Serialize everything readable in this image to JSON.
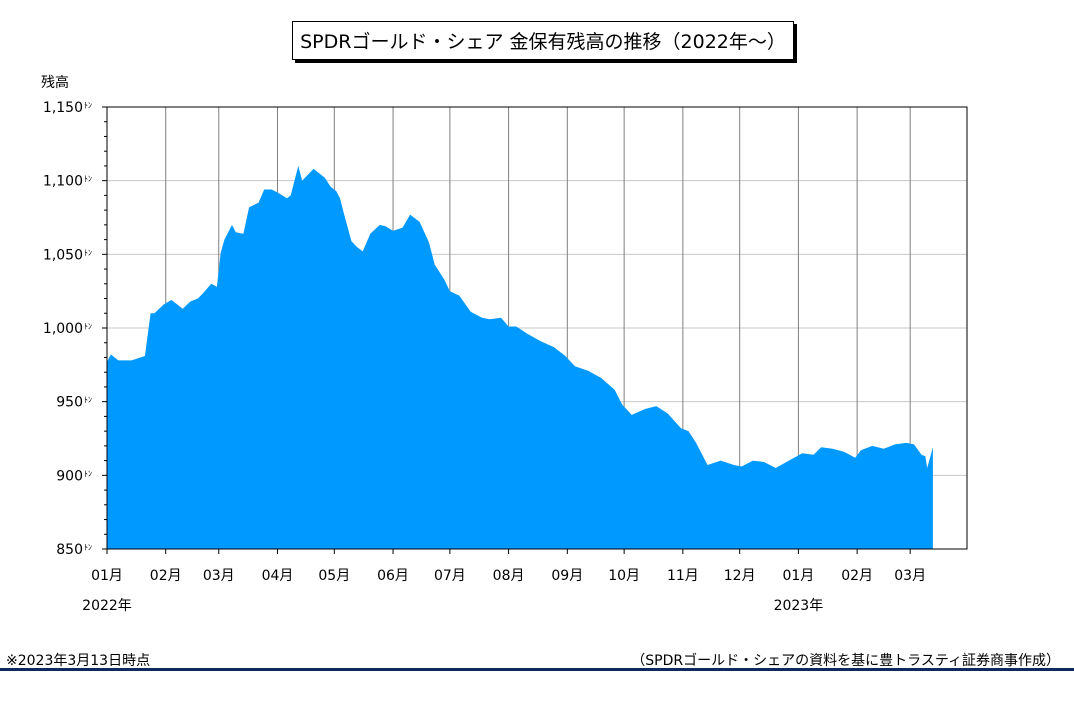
{
  "page": {
    "title": "SPDRゴールド・シェア 金保有残高の推移（2022年～）",
    "footnote_left": "※2023年3月13日時点",
    "footnote_right": "（SPDRゴールド・シェアの資料を基に豊トラスティ証券商事作成）"
  },
  "chart_data": {
    "type": "area",
    "title": "SPDRゴールド・シェア 金保有残高の推移（2022年～）",
    "ylabel": "残高",
    "xlabel": "",
    "ylim": [
      850,
      1150
    ],
    "yticks": [
      850,
      900,
      950,
      1000,
      1050,
      1100,
      1150
    ],
    "ytick_labels": [
      "850ﾄﾝ",
      "900ﾄﾝ",
      "950ﾄﾝ",
      "1,000ﾄﾝ",
      "1,050ﾄﾝ",
      "1,100ﾄﾝ",
      "1,150ﾄﾝ"
    ],
    "xlim": [
      "2022-01-01",
      "2023-03-31"
    ],
    "xticks": [
      "2022-01-01",
      "2022-02-01",
      "2022-03-01",
      "2022-04-01",
      "2022-05-01",
      "2022-06-01",
      "2022-07-01",
      "2022-08-01",
      "2022-09-01",
      "2022-10-01",
      "2022-11-01",
      "2022-12-01",
      "2023-01-01",
      "2023-02-01",
      "2023-03-01"
    ],
    "xtick_labels": [
      "01月",
      "02月",
      "03月",
      "04月",
      "05月",
      "06月",
      "07月",
      "08月",
      "09月",
      "10月",
      "11月",
      "12月",
      "01月",
      "02月",
      "03月"
    ],
    "year_labels": [
      {
        "label": "2022年",
        "date": "2022-01-01"
      },
      {
        "label": "2023年",
        "date": "2023-01-01"
      }
    ],
    "grid": true,
    "color": "#0099ff",
    "series": [
      {
        "x": [
          "2022-01-01",
          "2022-01-03",
          "2022-01-07",
          "2022-01-14",
          "2022-01-21",
          "2022-01-24",
          "2022-01-26",
          "2022-01-31",
          "2022-02-04",
          "2022-02-10",
          "2022-02-14",
          "2022-02-18",
          "2022-02-21",
          "2022-02-25",
          "2022-02-28",
          "2022-03-02",
          "2022-03-04",
          "2022-03-08",
          "2022-03-10",
          "2022-03-14",
          "2022-03-17",
          "2022-03-22",
          "2022-03-25",
          "2022-03-29",
          "2022-04-01",
          "2022-04-06",
          "2022-04-08",
          "2022-04-12",
          "2022-04-14",
          "2022-04-20",
          "2022-04-22",
          "2022-04-26",
          "2022-04-29",
          "2022-05-02",
          "2022-05-04",
          "2022-05-06",
          "2022-05-10",
          "2022-05-13",
          "2022-05-16",
          "2022-05-20",
          "2022-05-25",
          "2022-05-28",
          "2022-06-01",
          "2022-06-06",
          "2022-06-10",
          "2022-06-15",
          "2022-06-20",
          "2022-06-23",
          "2022-06-28",
          "2022-07-01",
          "2022-07-06",
          "2022-07-12",
          "2022-07-18",
          "2022-07-22",
          "2022-07-28",
          "2022-08-01",
          "2022-08-05",
          "2022-08-11",
          "2022-08-18",
          "2022-08-25",
          "2022-08-31",
          "2022-09-05",
          "2022-09-12",
          "2022-09-19",
          "2022-09-26",
          "2022-09-30",
          "2022-10-05",
          "2022-10-12",
          "2022-10-18",
          "2022-10-24",
          "2022-10-31",
          "2022-11-04",
          "2022-11-08",
          "2022-11-14",
          "2022-11-21",
          "2022-11-28",
          "2022-12-02",
          "2022-12-08",
          "2022-12-14",
          "2022-12-20",
          "2022-12-27",
          "2023-01-03",
          "2023-01-09",
          "2023-01-13",
          "2023-01-19",
          "2023-01-25",
          "2023-01-31",
          "2023-02-03",
          "2023-02-09",
          "2023-02-15",
          "2023-02-21",
          "2023-02-27",
          "2023-03-03",
          "2023-03-07",
          "2023-03-09",
          "2023-03-10",
          "2023-03-13"
        ],
        "values": [
          977,
          982,
          978,
          978,
          981,
          1010,
          1010,
          1016,
          1019,
          1013,
          1018,
          1020,
          1024,
          1030,
          1028,
          1051,
          1060,
          1070,
          1065,
          1064,
          1082,
          1085,
          1094,
          1094,
          1092,
          1088,
          1090,
          1110,
          1100,
          1108,
          1106,
          1102,
          1096,
          1093,
          1088,
          1078,
          1059,
          1055,
          1052,
          1064,
          1070,
          1069,
          1066,
          1068,
          1077,
          1072,
          1058,
          1043,
          1033,
          1025,
          1022,
          1011,
          1007,
          1006,
          1007,
          1001,
          1001,
          996,
          991,
          987,
          981,
          974,
          971,
          966,
          958,
          948,
          941,
          945,
          947,
          942,
          932,
          930,
          922,
          907,
          910,
          907,
          906,
          910,
          909,
          905,
          910,
          915,
          914,
          919,
          918,
          916,
          912,
          917,
          920,
          918,
          921,
          922,
          921,
          914,
          913,
          905,
          919
        ]
      }
    ]
  }
}
